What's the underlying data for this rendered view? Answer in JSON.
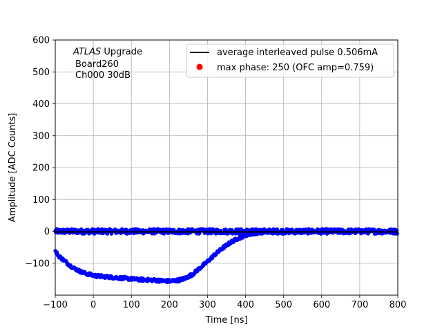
{
  "chart_data": {
    "type": "scatter",
    "xlabel": "Time [ns]",
    "ylabel": "Amplitude [ADC Counts]",
    "xlim": [
      -100,
      800
    ],
    "ylim": [
      -200,
      600
    ],
    "x_ticks": [
      -100,
      0,
      100,
      200,
      300,
      400,
      500,
      600,
      700,
      800
    ],
    "y_ticks": [
      -100,
      0,
      100,
      200,
      300,
      400,
      500,
      600
    ],
    "x_tick_labels": [
      "−100",
      "0",
      "100",
      "200",
      "300",
      "400",
      "500",
      "600",
      "700",
      "800"
    ],
    "y_tick_labels": [
      "−100",
      "0",
      "100",
      "200",
      "300",
      "400",
      "500",
      "600"
    ],
    "grid": true,
    "legend_position": "top-right",
    "annotation": {
      "line1_italic": "ATLAS",
      "line1_rest": " Upgrade",
      "line2": "Board260",
      "line3": "Ch000 30dB"
    },
    "series": [
      {
        "name": "average interleaved pulse 0.506mA",
        "kind": "line",
        "color": "#000000",
        "points": [
          [
            -100,
            -2
          ],
          [
            800,
            -2
          ]
        ]
      },
      {
        "name": "max phase: 250 (OFC amp=0.759)",
        "kind": "marker",
        "color": "#ff0000",
        "points": []
      },
      {
        "name": "",
        "kind": "scatter-baseline",
        "color": "#0000ff",
        "x_range": [
          -100,
          800
        ],
        "y_center": 0,
        "y_spread": 8
      },
      {
        "name": "",
        "kind": "scatter-pulse",
        "color": "#0000ff",
        "points": [
          [
            -100,
            -62
          ],
          [
            -90,
            -78
          ],
          [
            -80,
            -88
          ],
          [
            -70,
            -98
          ],
          [
            -60,
            -108
          ],
          [
            -50,
            -116
          ],
          [
            -40,
            -122
          ],
          [
            -30,
            -128
          ],
          [
            -20,
            -132
          ],
          [
            -10,
            -135
          ],
          [
            0,
            -138
          ],
          [
            10,
            -140
          ],
          [
            20,
            -141
          ],
          [
            40,
            -143
          ],
          [
            60,
            -145
          ],
          [
            80,
            -147
          ],
          [
            100,
            -149
          ],
          [
            120,
            -151
          ],
          [
            140,
            -152
          ],
          [
            160,
            -153
          ],
          [
            180,
            -155
          ],
          [
            200,
            -156
          ],
          [
            220,
            -154
          ],
          [
            240,
            -148
          ],
          [
            260,
            -135
          ],
          [
            280,
            -115
          ],
          [
            300,
            -95
          ],
          [
            320,
            -72
          ],
          [
            340,
            -52
          ],
          [
            360,
            -35
          ],
          [
            380,
            -22
          ],
          [
            400,
            -12
          ],
          [
            420,
            -6
          ],
          [
            440,
            -3
          ],
          [
            460,
            -1
          ],
          [
            480,
            0
          ]
        ]
      }
    ]
  }
}
